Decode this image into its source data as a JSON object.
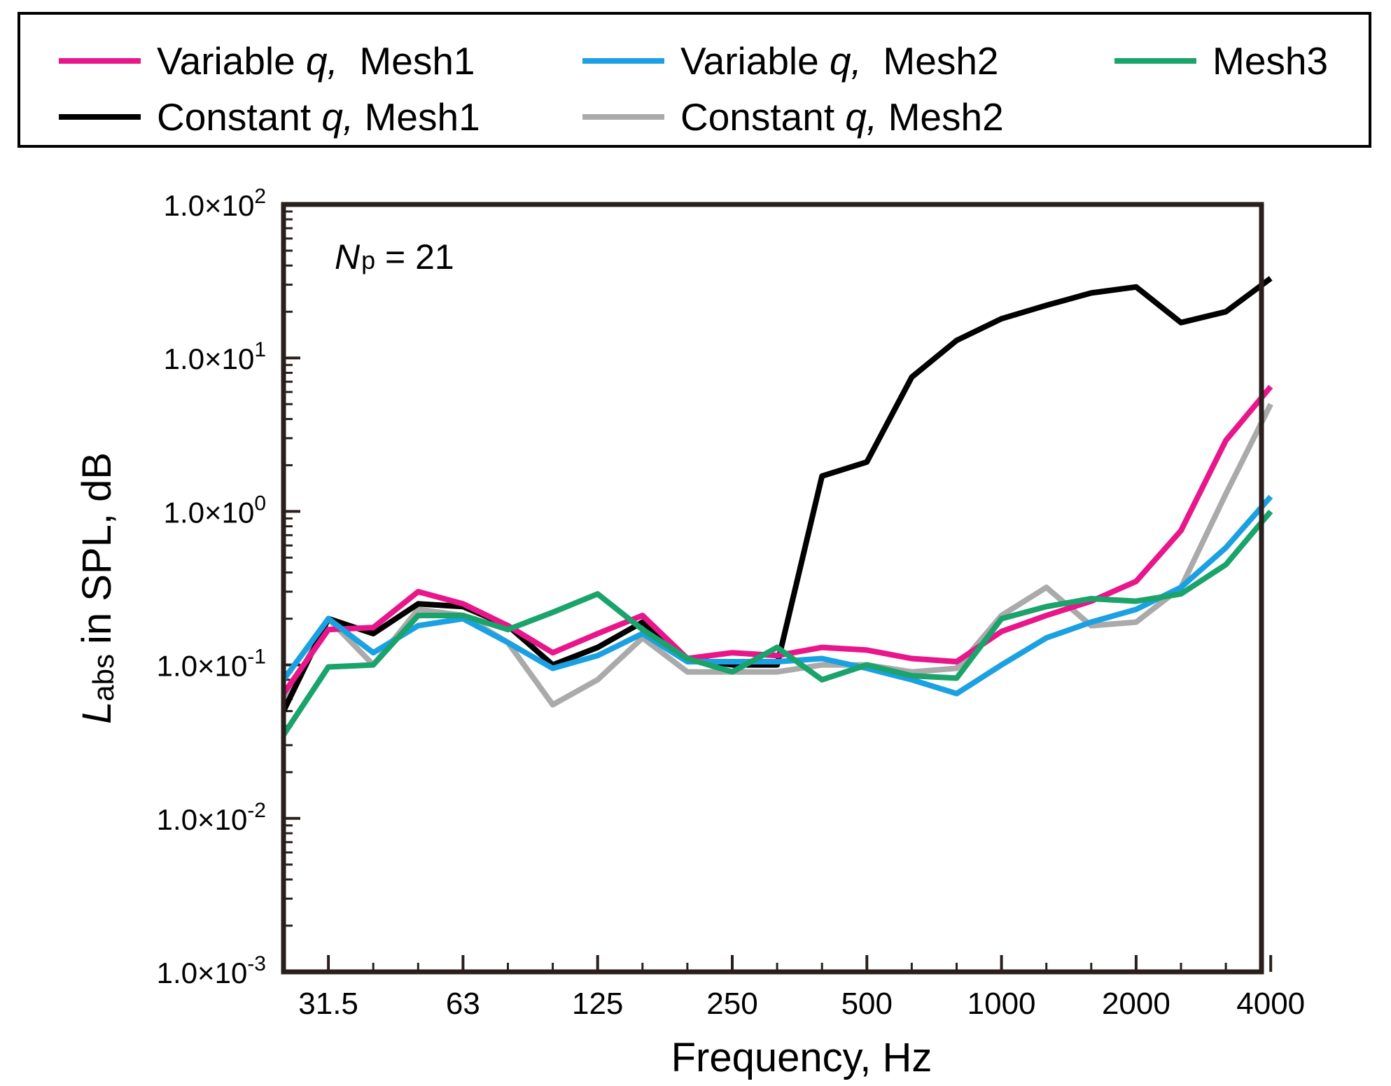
{
  "chart_data": {
    "type": "line",
    "xlabel": "Frequency, Hz",
    "ylabel": {
      "symbol": "L",
      "subscript": "abs",
      "rest": "in SPL, dB"
    },
    "yscale": "log",
    "ylim": [
      0.001,
      100
    ],
    "y_ticks": [
      {
        "value": 100,
        "mantissa": "1.0×10",
        "exponent": "2"
      },
      {
        "value": 10,
        "mantissa": "1.0×10",
        "exponent": "1"
      },
      {
        "value": 1,
        "mantissa": "1.0×10",
        "exponent": "0"
      },
      {
        "value": 0.1,
        "mantissa": "1.0×10",
        "exponent": "-1"
      },
      {
        "value": 0.01,
        "mantissa": "1.0×10",
        "exponent": "-2"
      },
      {
        "value": 0.001,
        "mantissa": "1.0×10",
        "exponent": "-3"
      }
    ],
    "x_tick_labels": [
      "31.5",
      "63",
      "125",
      "250",
      "500",
      "1000",
      "2000",
      "4000"
    ],
    "x": [
      "25",
      "31.5",
      "40",
      "50",
      "63",
      "80",
      "100",
      "125",
      "160",
      "200",
      "250",
      "315",
      "400",
      "500",
      "630",
      "800",
      "1000",
      "1250",
      "1600",
      "2000",
      "2500",
      "3150",
      "4000"
    ],
    "annotation": {
      "symbol": "N",
      "subscript": "p",
      "rest": " = 21"
    },
    "legend_position": "top, outside plot",
    "series": [
      {
        "name": "Constant q, Mesh2",
        "label_pre": "Constant ",
        "label_italic": "q,",
        "label_post": " Mesh2",
        "color": "#aaaaaa",
        "values": [
          0.055,
          0.2,
          0.1,
          0.23,
          0.21,
          0.14,
          0.055,
          0.08,
          0.15,
          0.09,
          0.09,
          0.09,
          0.1,
          0.1,
          0.09,
          0.095,
          0.21,
          0.32,
          0.18,
          0.19,
          0.32,
          1.3,
          5.0
        ]
      },
      {
        "name": "Constant q, Mesh1",
        "label_pre": "Constant ",
        "label_italic": "q,",
        "label_post": " Mesh1",
        "color": "#000000",
        "values": [
          0.05,
          0.2,
          0.16,
          0.25,
          0.24,
          0.18,
          0.1,
          0.13,
          0.19,
          0.11,
          0.1,
          0.1,
          1.7,
          2.1,
          7.5,
          13,
          18,
          22,
          26.5,
          29,
          17,
          20,
          33
        ]
      },
      {
        "name": "Variable q, Mesh1",
        "label_pre": "Variable ",
        "label_italic": "q,",
        "label_post": "  Mesh1",
        "color": "#e8168a",
        "values": [
          0.065,
          0.17,
          0.175,
          0.3,
          0.25,
          0.18,
          0.12,
          0.16,
          0.21,
          0.11,
          0.12,
          0.115,
          0.13,
          0.125,
          0.11,
          0.105,
          0.165,
          0.21,
          0.26,
          0.35,
          0.75,
          2.9,
          6.5
        ]
      },
      {
        "name": "Variable q, Mesh2",
        "label_pre": "Variable ",
        "label_italic": "q,",
        "label_post": "  Mesh2",
        "color": "#1ba1e2",
        "values": [
          0.08,
          0.2,
          0.12,
          0.18,
          0.2,
          0.14,
          0.095,
          0.115,
          0.16,
          0.105,
          0.105,
          0.105,
          0.11,
          0.095,
          0.08,
          0.065,
          0.1,
          0.15,
          0.19,
          0.23,
          0.32,
          0.58,
          1.25
        ]
      },
      {
        "name": "Mesh3",
        "label_pre": "",
        "label_italic": "",
        "label_post": "Mesh3",
        "color": "#1aa36b",
        "values": [
          0.035,
          0.097,
          0.1,
          0.21,
          0.21,
          0.17,
          0.22,
          0.29,
          0.17,
          0.11,
          0.09,
          0.13,
          0.08,
          0.1,
          0.085,
          0.082,
          0.2,
          0.24,
          0.27,
          0.26,
          0.29,
          0.45,
          1.0
        ]
      }
    ],
    "legend_rows": [
      [
        "Variable q, Mesh1",
        "Variable q, Mesh2",
        "Mesh3"
      ],
      [
        "Constant q, Mesh1",
        "Constant q, Mesh2"
      ]
    ]
  }
}
